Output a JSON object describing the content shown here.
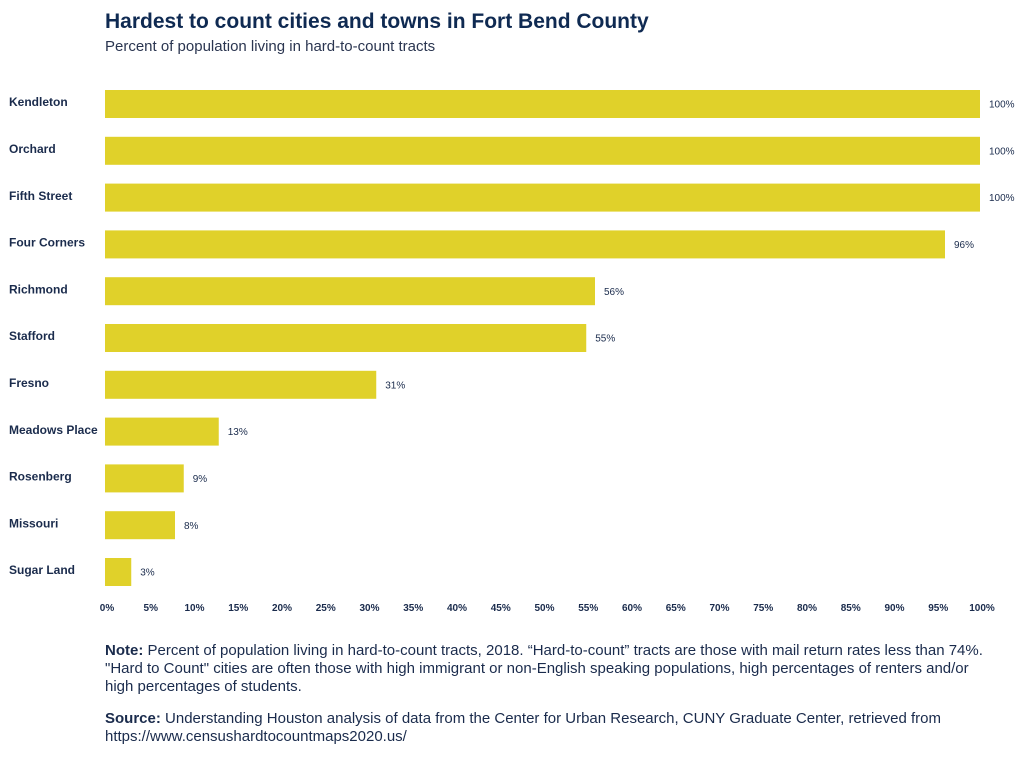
{
  "chart_data": {
    "type": "bar",
    "orientation": "horizontal",
    "title": "Hardest to count cities and towns in Fort Bend County",
    "subtitle": "Percent of population living in hard-to-count tracts",
    "categories": [
      "Kendleton",
      "Orchard",
      "Fifth Street",
      "Four Corners",
      "Richmond",
      "Stafford",
      "Fresno",
      "Meadows Place",
      "Rosenberg",
      "Missouri",
      "Sugar Land"
    ],
    "values": [
      100,
      100,
      100,
      96,
      56,
      55,
      31,
      13,
      9,
      8,
      3
    ],
    "value_labels": [
      "100%",
      "100%",
      "100%",
      "96%",
      "56%",
      "55%",
      "31%",
      "13%",
      "9%",
      "8%",
      "3%"
    ],
    "xlim": [
      0,
      100
    ],
    "x_ticks": [
      0,
      5,
      10,
      15,
      20,
      25,
      30,
      35,
      40,
      45,
      50,
      55,
      60,
      65,
      70,
      75,
      80,
      85,
      90,
      95,
      100
    ],
    "x_tick_labels": [
      "0%",
      "5%",
      "10%",
      "15%",
      "20%",
      "25%",
      "30%",
      "35%",
      "40%",
      "45%",
      "50%",
      "55%",
      "60%",
      "65%",
      "70%",
      "75%",
      "80%",
      "85%",
      "90%",
      "95%",
      "100%"
    ],
    "bar_color": "#e0d12a",
    "grid": false,
    "legend": "none"
  },
  "note": {
    "label": "Note:",
    "text": "Percent of population living in hard-to-count tracts, 2018. “Hard-to-count” tracts are those with mail return rates less than 74%. \"Hard to Count\" cities are often those with high immigrant or non-English speaking populations, high percentages of renters and/or high percentages of students."
  },
  "source": {
    "label": "Source:",
    "text": "Understanding Houston analysis of data from the Center for Urban Research, CUNY Graduate Center, retrieved from https://www.censushardtocountmaps2020.us/"
  },
  "colors": {
    "title": "#0f2a52",
    "text": "#1a2b4c",
    "bar": "#e0d12a"
  }
}
